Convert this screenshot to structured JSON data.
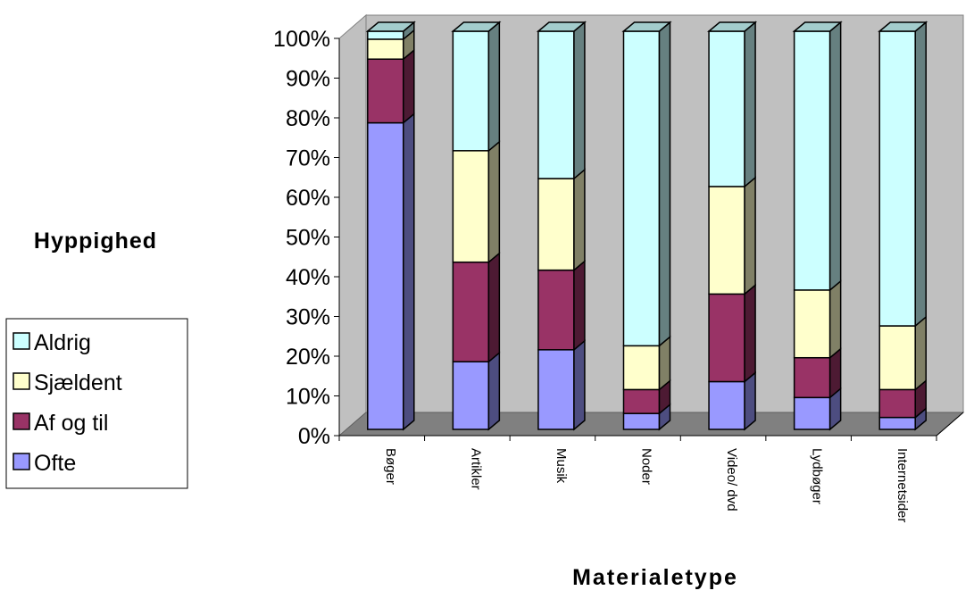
{
  "chart_data": {
    "type": "bar",
    "stacked": true,
    "three_d": true,
    "percent_stacked": true,
    "title": "",
    "xlabel": "Materialetype",
    "ylabel": "Hyppighed",
    "ylim": [
      0,
      100
    ],
    "y_ticks": [
      "0%",
      "10%",
      "20%",
      "30%",
      "40%",
      "50%",
      "60%",
      "70%",
      "80%",
      "90%",
      "100%"
    ],
    "grid": false,
    "legend_position": "left",
    "categories": [
      "Bøger",
      "Artikler",
      "Musik",
      "Noder",
      "Video/ dvd",
      "Lydbøger",
      "Internetsider"
    ],
    "series": [
      {
        "name": "Ofte",
        "color": "#9999FF",
        "values": [
          77,
          17,
          20,
          4,
          12,
          8,
          3
        ]
      },
      {
        "name": "Af og til",
        "color": "#993366",
        "values": [
          16,
          25,
          20,
          6,
          22,
          10,
          7
        ]
      },
      {
        "name": "Sjældent",
        "color": "#FFFFCC",
        "values": [
          5,
          28,
          23,
          11,
          27,
          17,
          16
        ]
      },
      {
        "name": "Aldrig",
        "color": "#CCFFFF",
        "values": [
          2,
          30,
          37,
          79,
          39,
          65,
          74
        ]
      }
    ],
    "legend_order": [
      "Aldrig",
      "Sjældent",
      "Af og til",
      "Ofte"
    ]
  }
}
